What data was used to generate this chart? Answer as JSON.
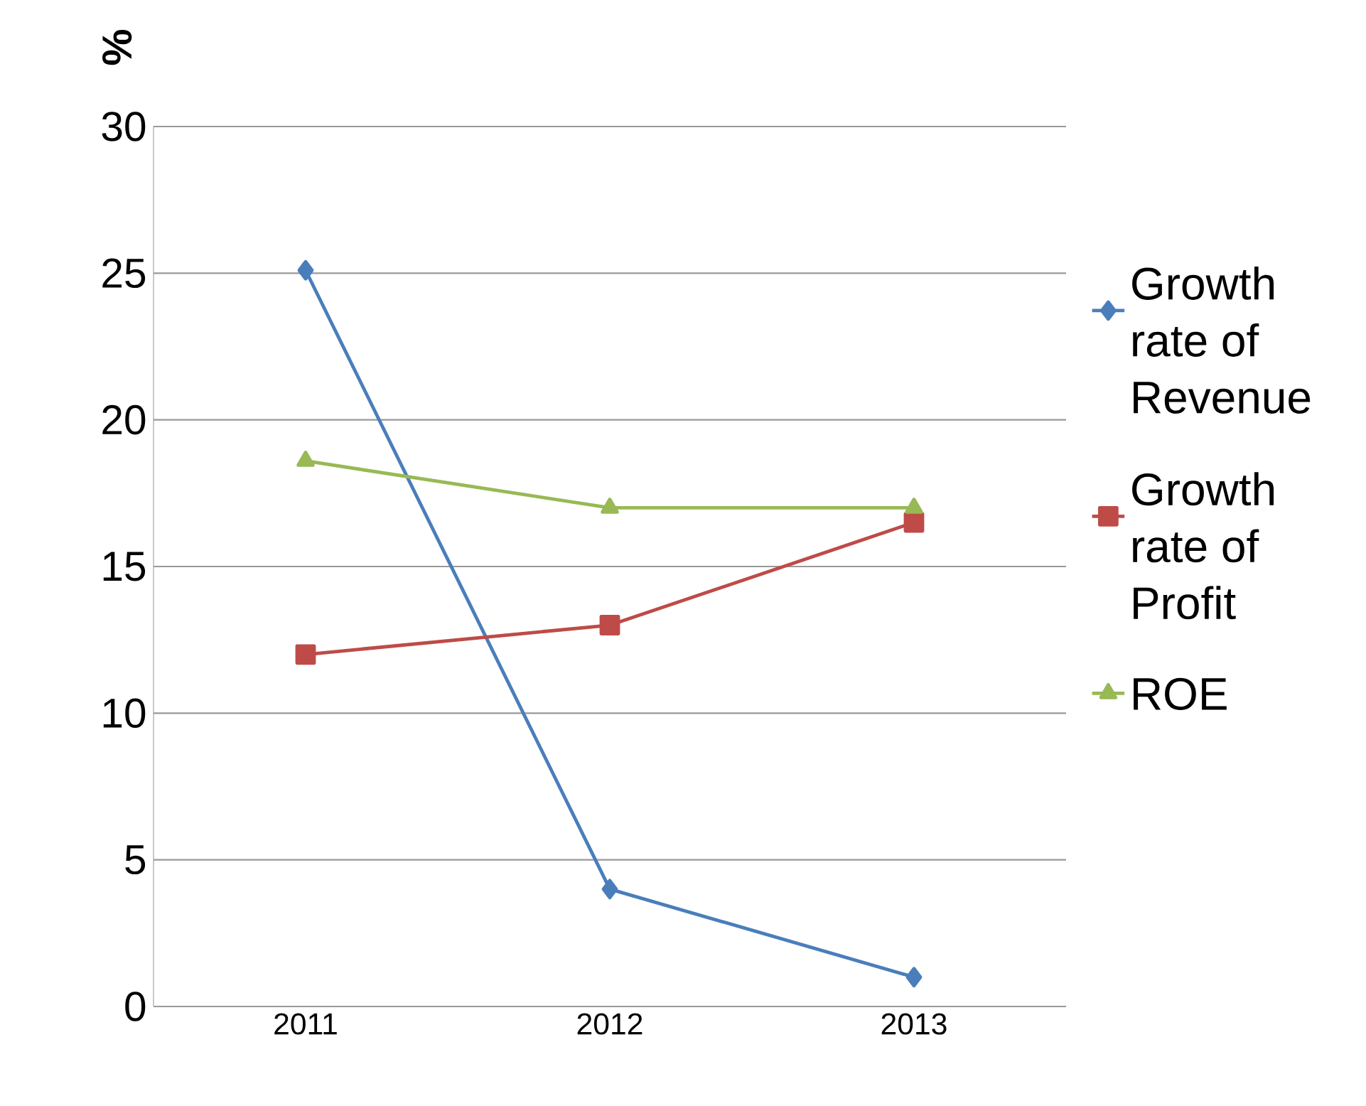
{
  "chart_data": {
    "type": "line",
    "ylabel": "%",
    "categories": [
      "2011",
      "2012",
      "2013"
    ],
    "series": [
      {
        "name": "Growth rate of Revenue",
        "color": "#4a7ebb",
        "marker": "diamond",
        "values": [
          25.1,
          4.0,
          1.0
        ]
      },
      {
        "name": "Growth rate of Profit",
        "color": "#be4b48",
        "marker": "square",
        "values": [
          12.0,
          13.0,
          16.5
        ]
      },
      {
        "name": "ROE",
        "color": "#98b954",
        "marker": "triangle",
        "values": [
          18.6,
          17.0,
          17.0
        ]
      }
    ],
    "ylim": [
      0,
      30
    ],
    "yticks": [
      0,
      5,
      10,
      15,
      20,
      25,
      30
    ],
    "grid": "y",
    "legend": "right",
    "line_style": "solid"
  }
}
